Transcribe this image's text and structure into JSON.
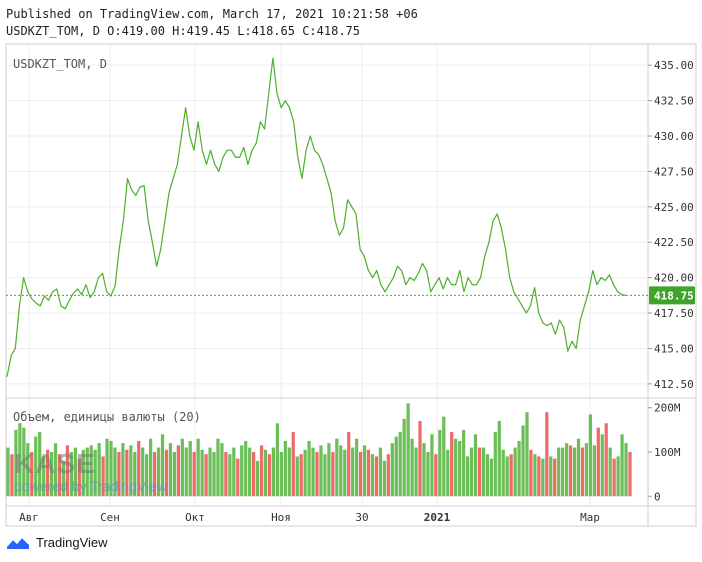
{
  "header": {
    "published": "Published on TradingView.com, March 17, 2021 10:21:58 +06",
    "ohlc": "USDKZT_TOM, D O:419.00 H:419.45 L:418.65 C:418.75"
  },
  "footer": {
    "brand": "TradingView"
  },
  "watermark": {
    "logo_text": "KASE",
    "powered": "powered by TradingView"
  },
  "chart_data": {
    "type": "line",
    "symbol_label": "USDKZT_TOM, D",
    "last_price_label": "418.75",
    "last_price": 418.75,
    "price_ylim": [
      411.5,
      436.5
    ],
    "price_ticks": [
      "412.50",
      "415.00",
      "417.50",
      "420.00",
      "422.50",
      "425.00",
      "427.50",
      "430.00",
      "432.50",
      "435.00"
    ],
    "x_ticks": [
      "Авг",
      "Сен",
      "Окт",
      "Ноя",
      "30",
      "2021",
      "Мар"
    ],
    "colors": {
      "line": "#4caf29",
      "vol_up": "#6cbf58",
      "vol_down": "#f06a6a",
      "last_price_bg": "#3fa52a"
    },
    "series": [
      {
        "values": [
          413.0,
          414.5,
          415.0,
          418.0,
          420.0,
          419.0,
          418.5,
          418.2,
          418.0,
          418.7,
          418.4,
          419.0,
          419.2,
          418.0,
          417.8,
          418.4,
          418.9,
          419.2,
          418.8,
          419.5,
          418.6,
          419.0,
          420.0,
          420.3,
          419.0,
          418.7,
          419.4,
          422.0,
          424.0,
          427.0,
          426.2,
          425.8,
          426.4,
          426.5,
          424.0,
          422.5,
          420.8,
          422.0,
          424.0,
          426.0,
          427.0,
          428.0,
          430.0,
          432.0,
          430.0,
          429.0,
          431.0,
          429.0,
          428.0,
          429.0,
          428.0,
          427.5,
          428.5,
          429.0,
          429.0,
          428.5,
          428.5,
          429.2,
          428.0,
          429.0,
          429.5,
          431.0,
          430.5,
          433.0,
          435.5,
          433.0,
          432.0,
          432.5,
          432.0,
          431.0,
          428.5,
          427.0,
          429.0,
          430.0,
          429.0,
          428.7,
          428.0,
          427.0,
          426.0,
          424.0,
          423.0,
          423.5,
          425.5,
          425.0,
          424.5,
          422.0,
          421.5,
          420.5,
          420.0,
          420.5,
          419.5,
          419.0,
          419.5,
          420.0,
          420.8,
          420.5,
          419.5,
          420.0,
          419.8,
          420.3,
          421.0,
          420.5,
          419.0,
          419.5,
          420.0,
          419.2,
          420.0,
          419.5,
          419.5,
          420.5,
          419.0,
          420.0,
          419.5,
          419.5,
          420.0,
          421.5,
          422.5,
          424.0,
          424.5,
          423.5,
          422.0,
          420.0,
          419.0,
          418.5,
          418.0,
          417.5,
          418.0,
          419.3,
          417.5,
          416.8,
          416.6,
          416.8,
          416.0,
          417.0,
          416.5,
          414.8,
          415.5,
          415.0,
          417.0,
          418.0,
          419.0,
          420.5,
          419.5,
          420.0,
          419.8,
          420.2,
          419.5,
          419.0,
          418.8,
          418.75
        ]
      }
    ],
    "volume": {
      "label": "Объем, единицы валюты (20)",
      "ylim": [
        -22,
        222
      ],
      "ticks": [
        "0",
        "100M",
        "200M"
      ],
      "bars": [
        {
          "v": 110,
          "up": true
        },
        {
          "v": 95,
          "up": false
        },
        {
          "v": 150,
          "up": true
        },
        {
          "v": 165,
          "up": true
        },
        {
          "v": 155,
          "up": true
        },
        {
          "v": 120,
          "up": true
        },
        {
          "v": 100,
          "up": false
        },
        {
          "v": 135,
          "up": true
        },
        {
          "v": 145,
          "up": true
        },
        {
          "v": 90,
          "up": true
        },
        {
          "v": 105,
          "up": false
        },
        {
          "v": 100,
          "up": true
        },
        {
          "v": 120,
          "up": true
        },
        {
          "v": 95,
          "up": false
        },
        {
          "v": 80,
          "up": true
        },
        {
          "v": 115,
          "up": false
        },
        {
          "v": 100,
          "up": true
        },
        {
          "v": 110,
          "up": true
        },
        {
          "v": 85,
          "up": false
        },
        {
          "v": 105,
          "up": true
        },
        {
          "v": 110,
          "up": true
        },
        {
          "v": 115,
          "up": true
        },
        {
          "v": 105,
          "up": true
        },
        {
          "v": 120,
          "up": true
        },
        {
          "v": 90,
          "up": false
        },
        {
          "v": 130,
          "up": true
        },
        {
          "v": 125,
          "up": true
        },
        {
          "v": 110,
          "up": true
        },
        {
          "v": 100,
          "up": false
        },
        {
          "v": 120,
          "up": true
        },
        {
          "v": 105,
          "up": false
        },
        {
          "v": 115,
          "up": true
        },
        {
          "v": 100,
          "up": true
        },
        {
          "v": 125,
          "up": false
        },
        {
          "v": 110,
          "up": true
        },
        {
          "v": 95,
          "up": true
        },
        {
          "v": 130,
          "up": true
        },
        {
          "v": 100,
          "up": false
        },
        {
          "v": 110,
          "up": true
        },
        {
          "v": 140,
          "up": true
        },
        {
          "v": 105,
          "up": false
        },
        {
          "v": 120,
          "up": true
        },
        {
          "v": 100,
          "up": true
        },
        {
          "v": 115,
          "up": false
        },
        {
          "v": 130,
          "up": true
        },
        {
          "v": 110,
          "up": true
        },
        {
          "v": 125,
          "up": true
        },
        {
          "v": 100,
          "up": false
        },
        {
          "v": 130,
          "up": true
        },
        {
          "v": 105,
          "up": true
        },
        {
          "v": 95,
          "up": false
        },
        {
          "v": 110,
          "up": true
        },
        {
          "v": 100,
          "up": true
        },
        {
          "v": 130,
          "up": true
        },
        {
          "v": 120,
          "up": true
        },
        {
          "v": 100,
          "up": false
        },
        {
          "v": 95,
          "up": true
        },
        {
          "v": 110,
          "up": true
        },
        {
          "v": 85,
          "up": false
        },
        {
          "v": 115,
          "up": true
        },
        {
          "v": 125,
          "up": true
        },
        {
          "v": 110,
          "up": true
        },
        {
          "v": 100,
          "up": false
        },
        {
          "v": 80,
          "up": true
        },
        {
          "v": 115,
          "up": false
        },
        {
          "v": 105,
          "up": true
        },
        {
          "v": 95,
          "up": false
        },
        {
          "v": 110,
          "up": true
        },
        {
          "v": 165,
          "up": true
        },
        {
          "v": 100,
          "up": true
        },
        {
          "v": 125,
          "up": true
        },
        {
          "v": 110,
          "up": true
        },
        {
          "v": 145,
          "up": false
        },
        {
          "v": 90,
          "up": true
        },
        {
          "v": 95,
          "up": false
        },
        {
          "v": 105,
          "up": true
        },
        {
          "v": 125,
          "up": true
        },
        {
          "v": 110,
          "up": true
        },
        {
          "v": 100,
          "up": false
        },
        {
          "v": 115,
          "up": true
        },
        {
          "v": 95,
          "up": true
        },
        {
          "v": 120,
          "up": true
        },
        {
          "v": 100,
          "up": false
        },
        {
          "v": 130,
          "up": true
        },
        {
          "v": 115,
          "up": true
        },
        {
          "v": 105,
          "up": true
        },
        {
          "v": 145,
          "up": false
        },
        {
          "v": 110,
          "up": true
        },
        {
          "v": 130,
          "up": true
        },
        {
          "v": 100,
          "up": false
        },
        {
          "v": 115,
          "up": true
        },
        {
          "v": 105,
          "up": false
        },
        {
          "v": 95,
          "up": true
        },
        {
          "v": 90,
          "up": false
        },
        {
          "v": 110,
          "up": true
        },
        {
          "v": 80,
          "up": true
        },
        {
          "v": 95,
          "up": false
        },
        {
          "v": 120,
          "up": true
        },
        {
          "v": 135,
          "up": true
        },
        {
          "v": 145,
          "up": true
        },
        {
          "v": 175,
          "up": true
        },
        {
          "v": 210,
          "up": true
        },
        {
          "v": 130,
          "up": true
        },
        {
          "v": 110,
          "up": true
        },
        {
          "v": 170,
          "up": false
        },
        {
          "v": 120,
          "up": true
        },
        {
          "v": 100,
          "up": true
        },
        {
          "v": 140,
          "up": true
        },
        {
          "v": 95,
          "up": false
        },
        {
          "v": 150,
          "up": true
        },
        {
          "v": 180,
          "up": true
        },
        {
          "v": 105,
          "up": true
        },
        {
          "v": 145,
          "up": false
        },
        {
          "v": 130,
          "up": true
        },
        {
          "v": 125,
          "up": true
        },
        {
          "v": 150,
          "up": true
        },
        {
          "v": 90,
          "up": true
        },
        {
          "v": 110,
          "up": true
        },
        {
          "v": 140,
          "up": true
        },
        {
          "v": 110,
          "up": false
        },
        {
          "v": 110,
          "up": true
        },
        {
          "v": 95,
          "up": true
        },
        {
          "v": 85,
          "up": true
        },
        {
          "v": 145,
          "up": true
        },
        {
          "v": 170,
          "up": true
        },
        {
          "v": 105,
          "up": true
        },
        {
          "v": 90,
          "up": true
        },
        {
          "v": 95,
          "up": false
        },
        {
          "v": 110,
          "up": true
        },
        {
          "v": 125,
          "up": true
        },
        {
          "v": 160,
          "up": true
        },
        {
          "v": 190,
          "up": true
        },
        {
          "v": 105,
          "up": false
        },
        {
          "v": 95,
          "up": true
        },
        {
          "v": 90,
          "up": false
        },
        {
          "v": 85,
          "up": true
        },
        {
          "v": 190,
          "up": false
        },
        {
          "v": 90,
          "up": true
        },
        {
          "v": 85,
          "up": false
        },
        {
          "v": 110,
          "up": true
        },
        {
          "v": 110,
          "up": true
        },
        {
          "v": 120,
          "up": true
        },
        {
          "v": 115,
          "up": false
        },
        {
          "v": 110,
          "up": true
        },
        {
          "v": 130,
          "up": true
        },
        {
          "v": 110,
          "up": false
        },
        {
          "v": 120,
          "up": true
        },
        {
          "v": 185,
          "up": true
        },
        {
          "v": 115,
          "up": true
        },
        {
          "v": 155,
          "up": false
        },
        {
          "v": 140,
          "up": true
        },
        {
          "v": 165,
          "up": false
        },
        {
          "v": 110,
          "up": true
        },
        {
          "v": 85,
          "up": false
        },
        {
          "v": 90,
          "up": true
        },
        {
          "v": 140,
          "up": true
        },
        {
          "v": 120,
          "up": true
        },
        {
          "v": 100,
          "up": false
        }
      ]
    }
  }
}
